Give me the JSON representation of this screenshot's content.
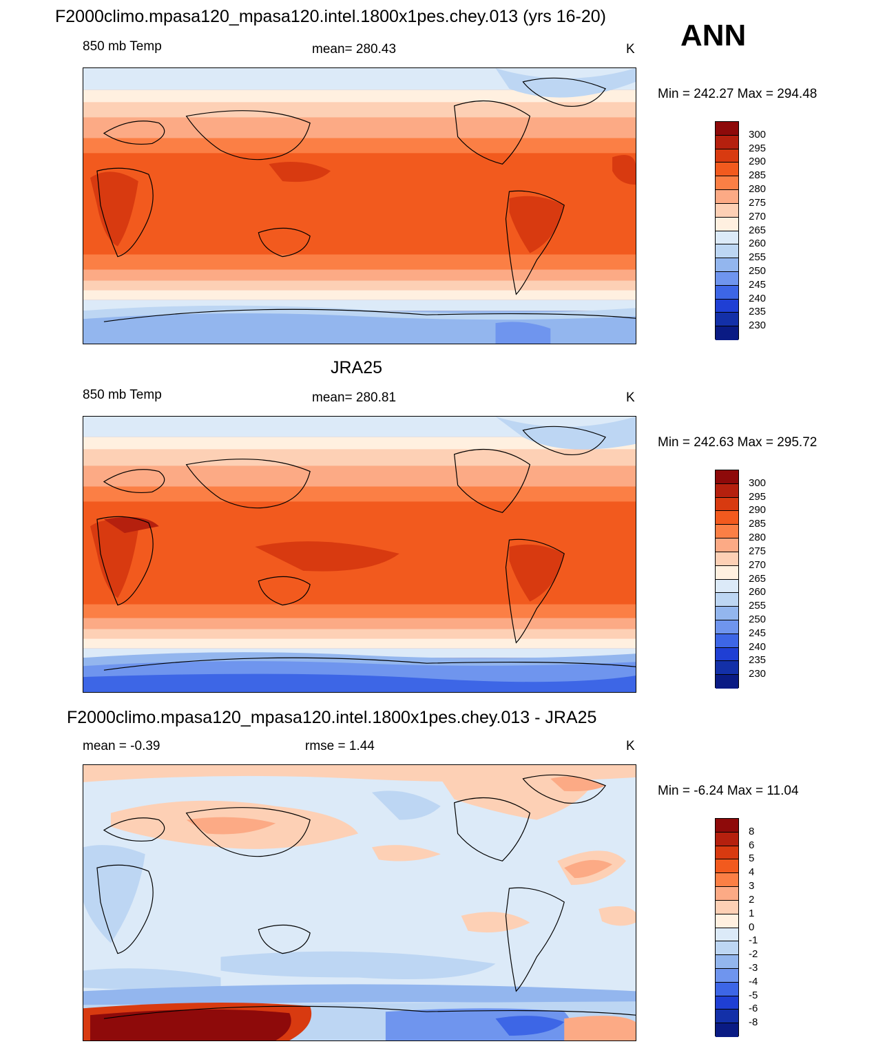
{
  "season": "ANN",
  "panels": [
    {
      "title": "F2000climo.mpasa120_mpasa120.intel.1800x1pes.chey.013 (yrs 16-20)",
      "left_label": "850 mb Temp",
      "center_label": "mean= 280.43",
      "units": "K",
      "minmax": "Min = 242.27 Max = 294.48",
      "colorbar": {
        "labels": [
          "300",
          "295",
          "290",
          "285",
          "280",
          "275",
          "270",
          "265",
          "260",
          "255",
          "250",
          "245",
          "240",
          "235",
          "230"
        ],
        "colors": [
          "#8e0a0a",
          "#b5200e",
          "#d83a10",
          "#f25a1e",
          "#fb7f45",
          "#fcaa85",
          "#fdd0b5",
          "#fff0e0",
          "#dceaf8",
          "#bdd6f3",
          "#93b6ee",
          "#6f95ee",
          "#3d66e6",
          "#1f3fd4",
          "#1330a8",
          "#0a1b84"
        ]
      }
    },
    {
      "title": "JRA25",
      "left_label": "850 mb Temp",
      "center_label": "mean= 280.81",
      "units": "K",
      "minmax": "Min = 242.63 Max = 295.72",
      "colorbar": {
        "labels": [
          "300",
          "295",
          "290",
          "285",
          "280",
          "275",
          "270",
          "265",
          "260",
          "255",
          "250",
          "245",
          "240",
          "235",
          "230"
        ],
        "colors": [
          "#8e0a0a",
          "#b5200e",
          "#d83a10",
          "#f25a1e",
          "#fb7f45",
          "#fcaa85",
          "#fdd0b5",
          "#fff0e0",
          "#dceaf8",
          "#bdd6f3",
          "#93b6ee",
          "#6f95ee",
          "#3d66e6",
          "#1f3fd4",
          "#1330a8",
          "#0a1b84"
        ]
      }
    },
    {
      "title": "F2000climo.mpasa120_mpasa120.intel.1800x1pes.chey.013 - JRA25",
      "left_label": "mean =  -0.39",
      "center_label": "rmse =   1.44",
      "units": "K",
      "minmax": "Min =  -6.24 Max =  11.04",
      "colorbar": {
        "labels": [
          "8",
          "6",
          "5",
          "4",
          "3",
          "2",
          "1",
          "0",
          "-1",
          "-2",
          "-3",
          "-4",
          "-5",
          "-6",
          "-8"
        ],
        "colors": [
          "#8e0a0a",
          "#b5200e",
          "#d83a10",
          "#f25a1e",
          "#fb7f45",
          "#fcaa85",
          "#fdd0b5",
          "#fff0e0",
          "#dceaf8",
          "#bdd6f3",
          "#93b6ee",
          "#6f95ee",
          "#3d66e6",
          "#1f3fd4",
          "#1330a8",
          "#0a1b84"
        ]
      }
    }
  ]
}
